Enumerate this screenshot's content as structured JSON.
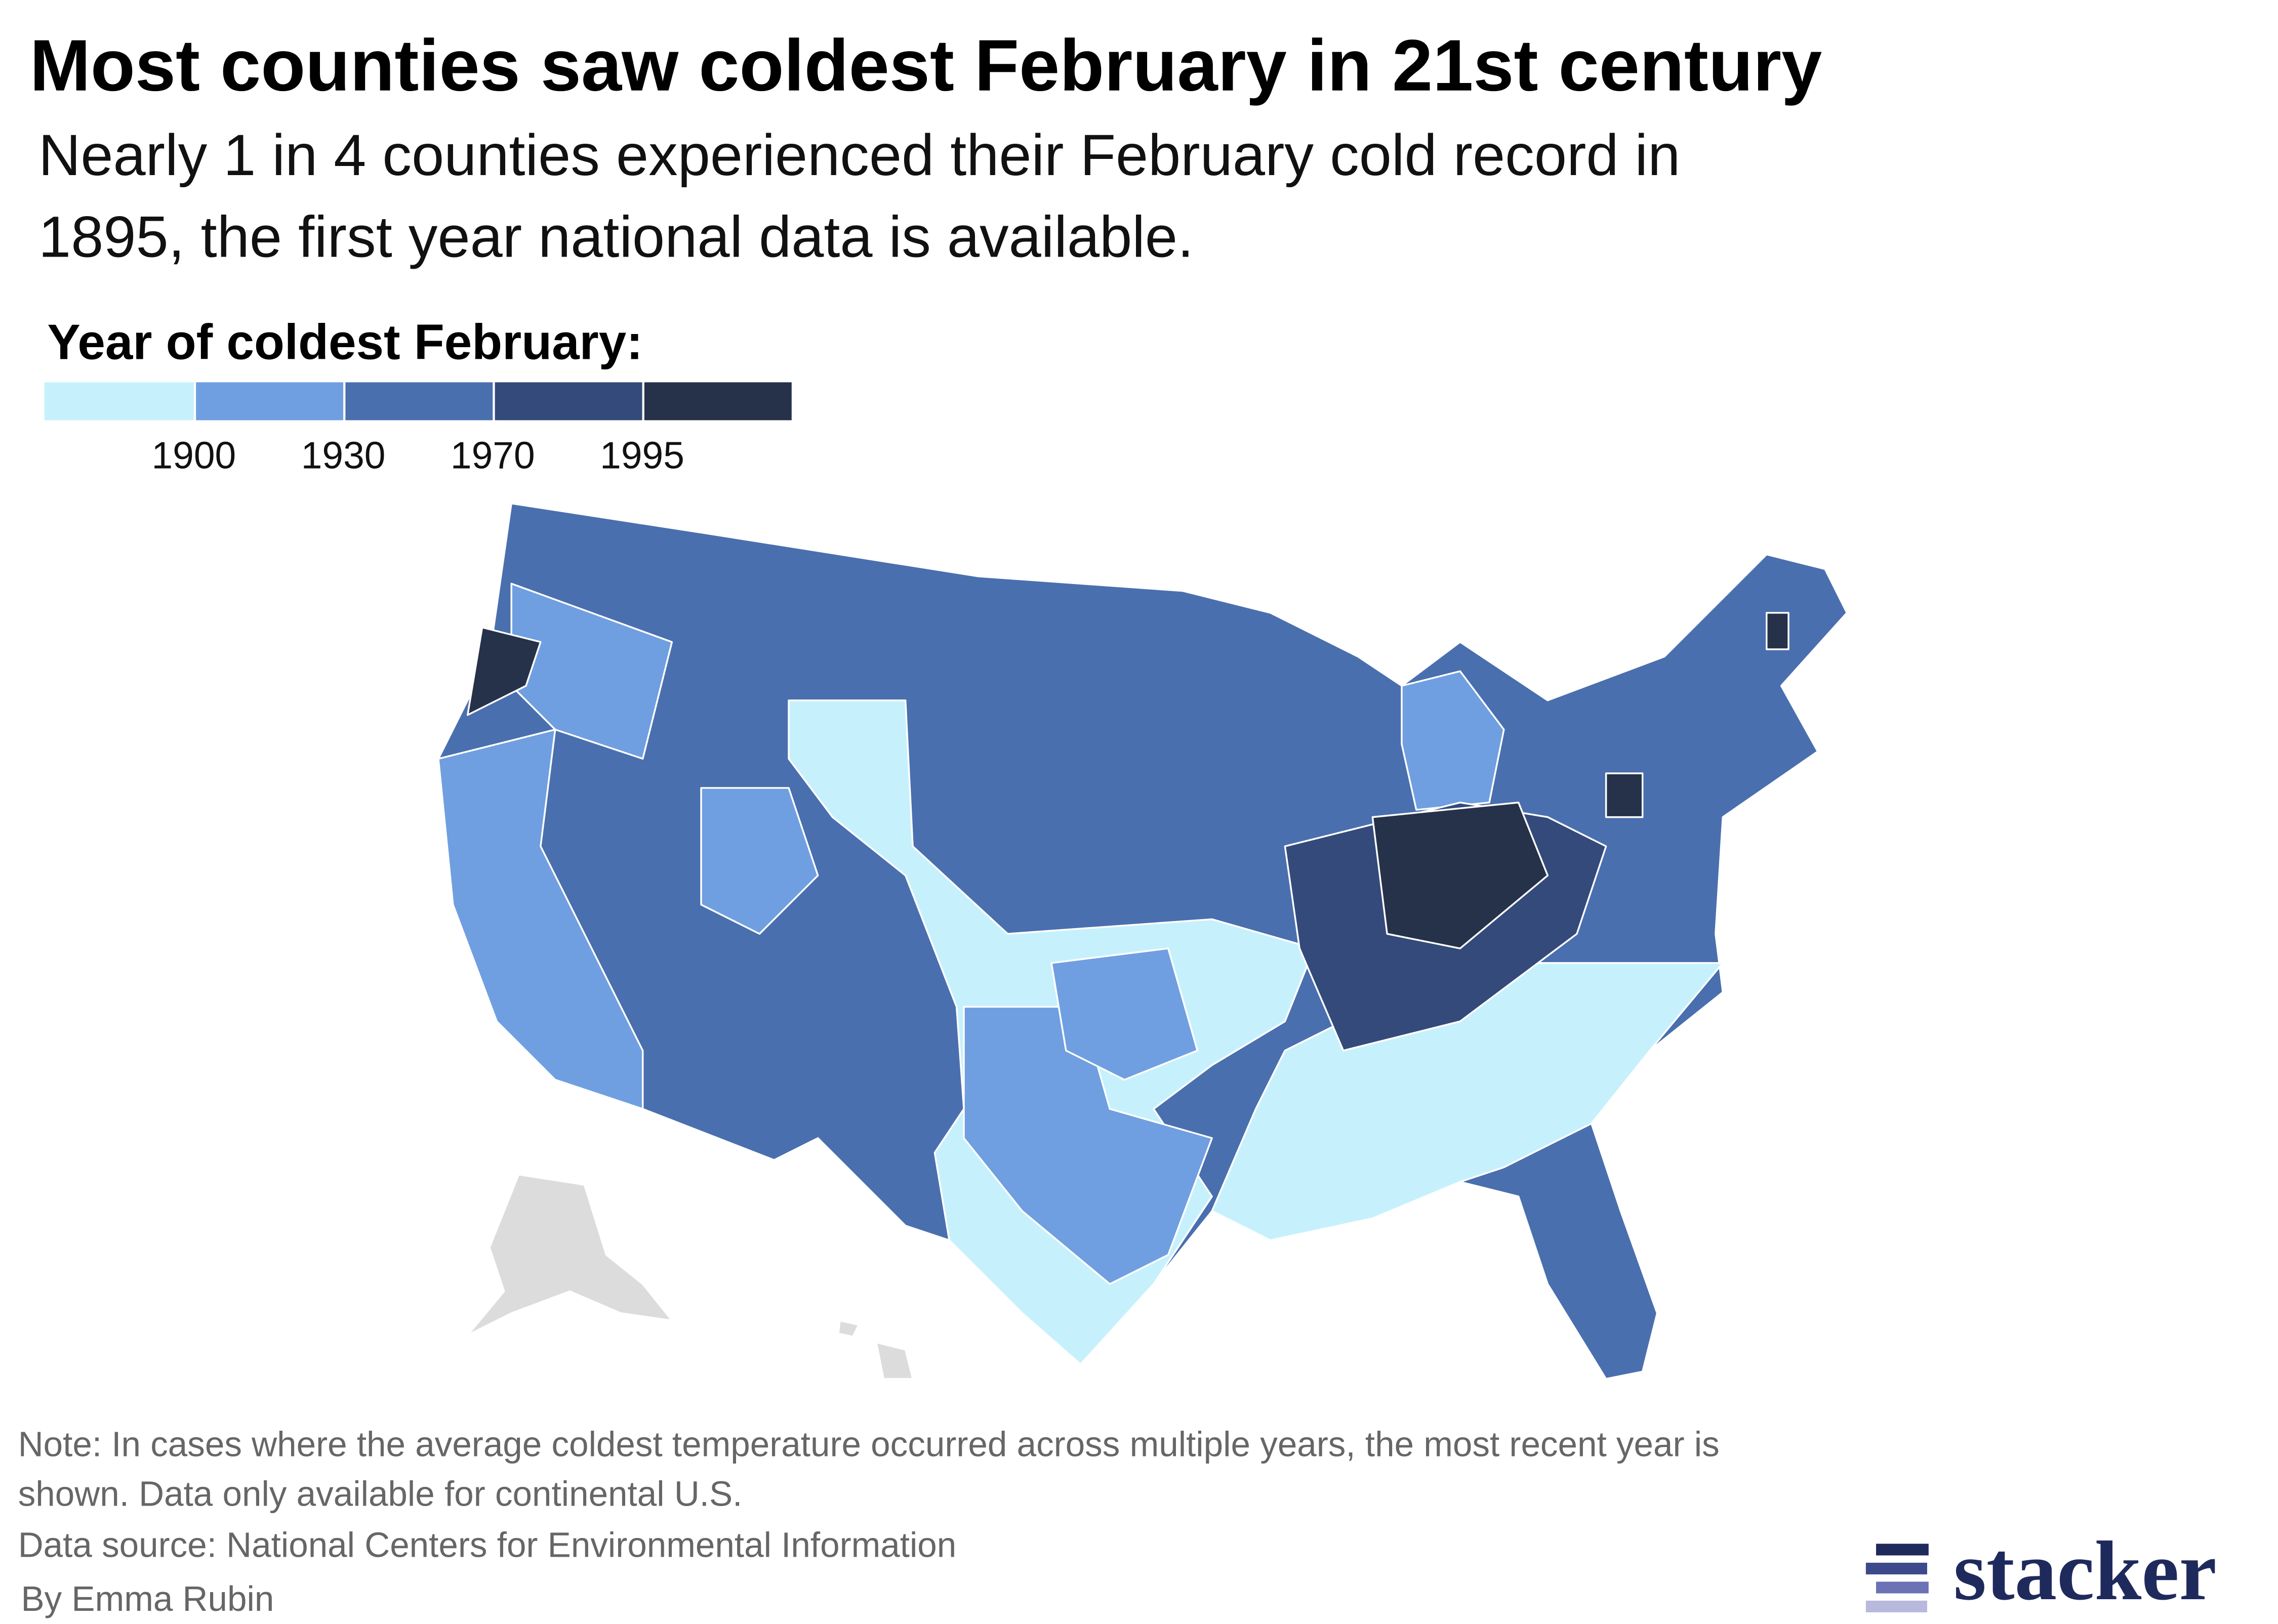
{
  "header": {
    "title": "Most counties saw coldest February in 21st century",
    "subtitle": [
      "Nearly 1 in 4 counties experienced their February cold record in",
      "1895, the first year national data is available."
    ]
  },
  "legend": {
    "title": "Year of coldest February:",
    "colors": [
      "#c6f1fc",
      "#6f9fe0",
      "#4a6fae",
      "#344a7a",
      "#253249"
    ],
    "ticks": [
      1900,
      1930,
      1970,
      1995
    ]
  },
  "footer": {
    "note": [
      "Note: In cases where the average coldest temperature occurred across multiple years, the most recent year is",
      "shown. Data only available for continental U.S."
    ],
    "source": "Data source: National Centers for Environmental Information",
    "byline": "By Emma Rubin",
    "logo": "stacker"
  }
}
